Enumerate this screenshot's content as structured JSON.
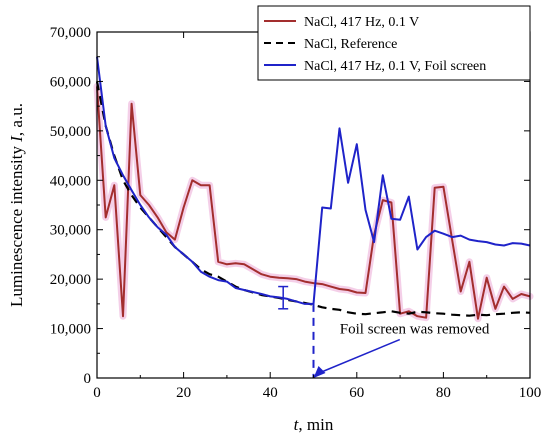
{
  "chart_data": {
    "type": "line",
    "title": "",
    "xlabel_var": "t",
    "xlabel_unit": ", min",
    "ylabel_prefix": "Luminescence intensity ",
    "ylabel_var": "I",
    "ylabel_unit": ", a.u.",
    "xlim": [
      0,
      100
    ],
    "ylim": [
      0,
      70000
    ],
    "xticks": [
      0,
      20,
      40,
      60,
      80,
      100
    ],
    "yticks": [
      0,
      10000,
      20000,
      30000,
      40000,
      50000,
      60000,
      70000
    ],
    "xtick_labels": [
      "0",
      "20",
      "40",
      "60",
      "80",
      "100"
    ],
    "ytick_labels": [
      "0",
      "10,000",
      "20,000",
      "30,000",
      "40,000",
      "50,000",
      "60,000",
      "70,000"
    ],
    "legend_position": "top-right",
    "grid": false,
    "series": [
      {
        "name": "NaCl, 417 Hz, 0.1 V",
        "color": "#a32e2e",
        "band_color": "#f0bfe0",
        "style": "solid",
        "points": [
          [
            0,
            59000
          ],
          [
            2,
            32500
          ],
          [
            4,
            39000
          ],
          [
            6,
            12500
          ],
          [
            8,
            55500
          ],
          [
            10,
            37000
          ],
          [
            12,
            35000
          ],
          [
            14,
            32500
          ],
          [
            16,
            29500
          ],
          [
            18,
            28000
          ],
          [
            20,
            34500
          ],
          [
            22,
            40000
          ],
          [
            24,
            39000
          ],
          [
            26,
            39000
          ],
          [
            28,
            23500
          ],
          [
            30,
            23000
          ],
          [
            32,
            23200
          ],
          [
            34,
            23000
          ],
          [
            36,
            22000
          ],
          [
            38,
            21000
          ],
          [
            40,
            20500
          ],
          [
            42,
            20300
          ],
          [
            44,
            20200
          ],
          [
            46,
            20000
          ],
          [
            48,
            19500
          ],
          [
            50,
            19200
          ],
          [
            52,
            19000
          ],
          [
            54,
            18500
          ],
          [
            56,
            18000
          ],
          [
            58,
            17800
          ],
          [
            60,
            17300
          ],
          [
            62,
            17200
          ],
          [
            64,
            29000
          ],
          [
            66,
            36000
          ],
          [
            68,
            35500
          ],
          [
            70,
            13000
          ],
          [
            72,
            13500
          ],
          [
            74,
            12500
          ],
          [
            76,
            12200
          ],
          [
            78,
            38500
          ],
          [
            80,
            38700
          ],
          [
            82,
            28000
          ],
          [
            84,
            17500
          ],
          [
            86,
            23500
          ],
          [
            88,
            12000
          ],
          [
            90,
            20300
          ],
          [
            92,
            14000
          ],
          [
            94,
            18500
          ],
          [
            96,
            16000
          ],
          [
            98,
            17000
          ],
          [
            100,
            16500
          ]
        ]
      },
      {
        "name": "NaCl, Reference",
        "color": "#000000",
        "style": "dashed",
        "points": [
          [
            0,
            60000
          ],
          [
            2,
            51000
          ],
          [
            4,
            45000
          ],
          [
            6,
            40000
          ],
          [
            8,
            37000
          ],
          [
            10,
            34500
          ],
          [
            12,
            32500
          ],
          [
            14,
            30500
          ],
          [
            16,
            28500
          ],
          [
            18,
            26500
          ],
          [
            20,
            25000
          ],
          [
            22,
            23500
          ],
          [
            24,
            22000
          ],
          [
            26,
            21000
          ],
          [
            28,
            20500
          ],
          [
            30,
            19500
          ],
          [
            32,
            18500
          ],
          [
            34,
            17800
          ],
          [
            36,
            17300
          ],
          [
            38,
            16800
          ],
          [
            40,
            16500
          ],
          [
            42,
            16200
          ],
          [
            44,
            15800
          ],
          [
            46,
            15500
          ],
          [
            48,
            15200
          ],
          [
            50,
            14800
          ],
          [
            52,
            14300
          ],
          [
            54,
            14000
          ],
          [
            56,
            13800
          ],
          [
            58,
            13300
          ],
          [
            60,
            13000
          ],
          [
            62,
            12900
          ],
          [
            64,
            13100
          ],
          [
            66,
            13300
          ],
          [
            68,
            13500
          ],
          [
            70,
            13200
          ],
          [
            72,
            13000
          ],
          [
            74,
            13400
          ],
          [
            76,
            13300
          ],
          [
            78,
            13100
          ],
          [
            80,
            13000
          ],
          [
            82,
            12800
          ],
          [
            84,
            12700
          ],
          [
            86,
            12600
          ],
          [
            88,
            12800
          ],
          [
            90,
            12700
          ],
          [
            92,
            12900
          ],
          [
            94,
            13000
          ],
          [
            96,
            13200
          ],
          [
            98,
            13300
          ],
          [
            100,
            13200
          ]
        ]
      },
      {
        "name": "NaCl, 417 Hz, 0.1 V, Foil screen",
        "color": "#1f23c9",
        "style": "solid",
        "points": [
          [
            0,
            65000
          ],
          [
            2,
            51000
          ],
          [
            4,
            44500
          ],
          [
            6,
            41000
          ],
          [
            8,
            38000
          ],
          [
            10,
            35000
          ],
          [
            12,
            32500
          ],
          [
            14,
            30500
          ],
          [
            16,
            29000
          ],
          [
            18,
            26500
          ],
          [
            20,
            25000
          ],
          [
            22,
            23500
          ],
          [
            24,
            21500
          ],
          [
            26,
            20500
          ],
          [
            28,
            19800
          ],
          [
            30,
            19500
          ],
          [
            32,
            18200
          ],
          [
            34,
            17800
          ],
          [
            36,
            17400
          ],
          [
            38,
            17000
          ],
          [
            40,
            16500
          ],
          [
            42,
            16300
          ],
          [
            44,
            16000
          ],
          [
            46,
            15500
          ],
          [
            48,
            15000
          ],
          [
            50,
            15000
          ],
          [
            52,
            34500
          ],
          [
            54,
            34300
          ],
          [
            56,
            50500
          ],
          [
            58,
            39500
          ],
          [
            60,
            47300
          ],
          [
            62,
            34000
          ],
          [
            64,
            27500
          ],
          [
            66,
            41000
          ],
          [
            68,
            32200
          ],
          [
            70,
            32000
          ],
          [
            72,
            36700
          ],
          [
            74,
            26000
          ],
          [
            76,
            28500
          ],
          [
            78,
            29800
          ],
          [
            80,
            29200
          ],
          [
            82,
            28500
          ],
          [
            84,
            28800
          ],
          [
            86,
            28000
          ],
          [
            88,
            27700
          ],
          [
            90,
            27500
          ],
          [
            92,
            27000
          ],
          [
            94,
            26800
          ],
          [
            96,
            27300
          ],
          [
            98,
            27200
          ],
          [
            100,
            26800
          ]
        ]
      }
    ],
    "error_bar": {
      "x": 43,
      "y_low": 14000,
      "y_high": 18500
    },
    "annotation": {
      "text": "Foil screen was removed",
      "vline_x": 50,
      "arrow_target": [
        50,
        0
      ],
      "text_anchor": [
        63,
        9000
      ]
    }
  }
}
